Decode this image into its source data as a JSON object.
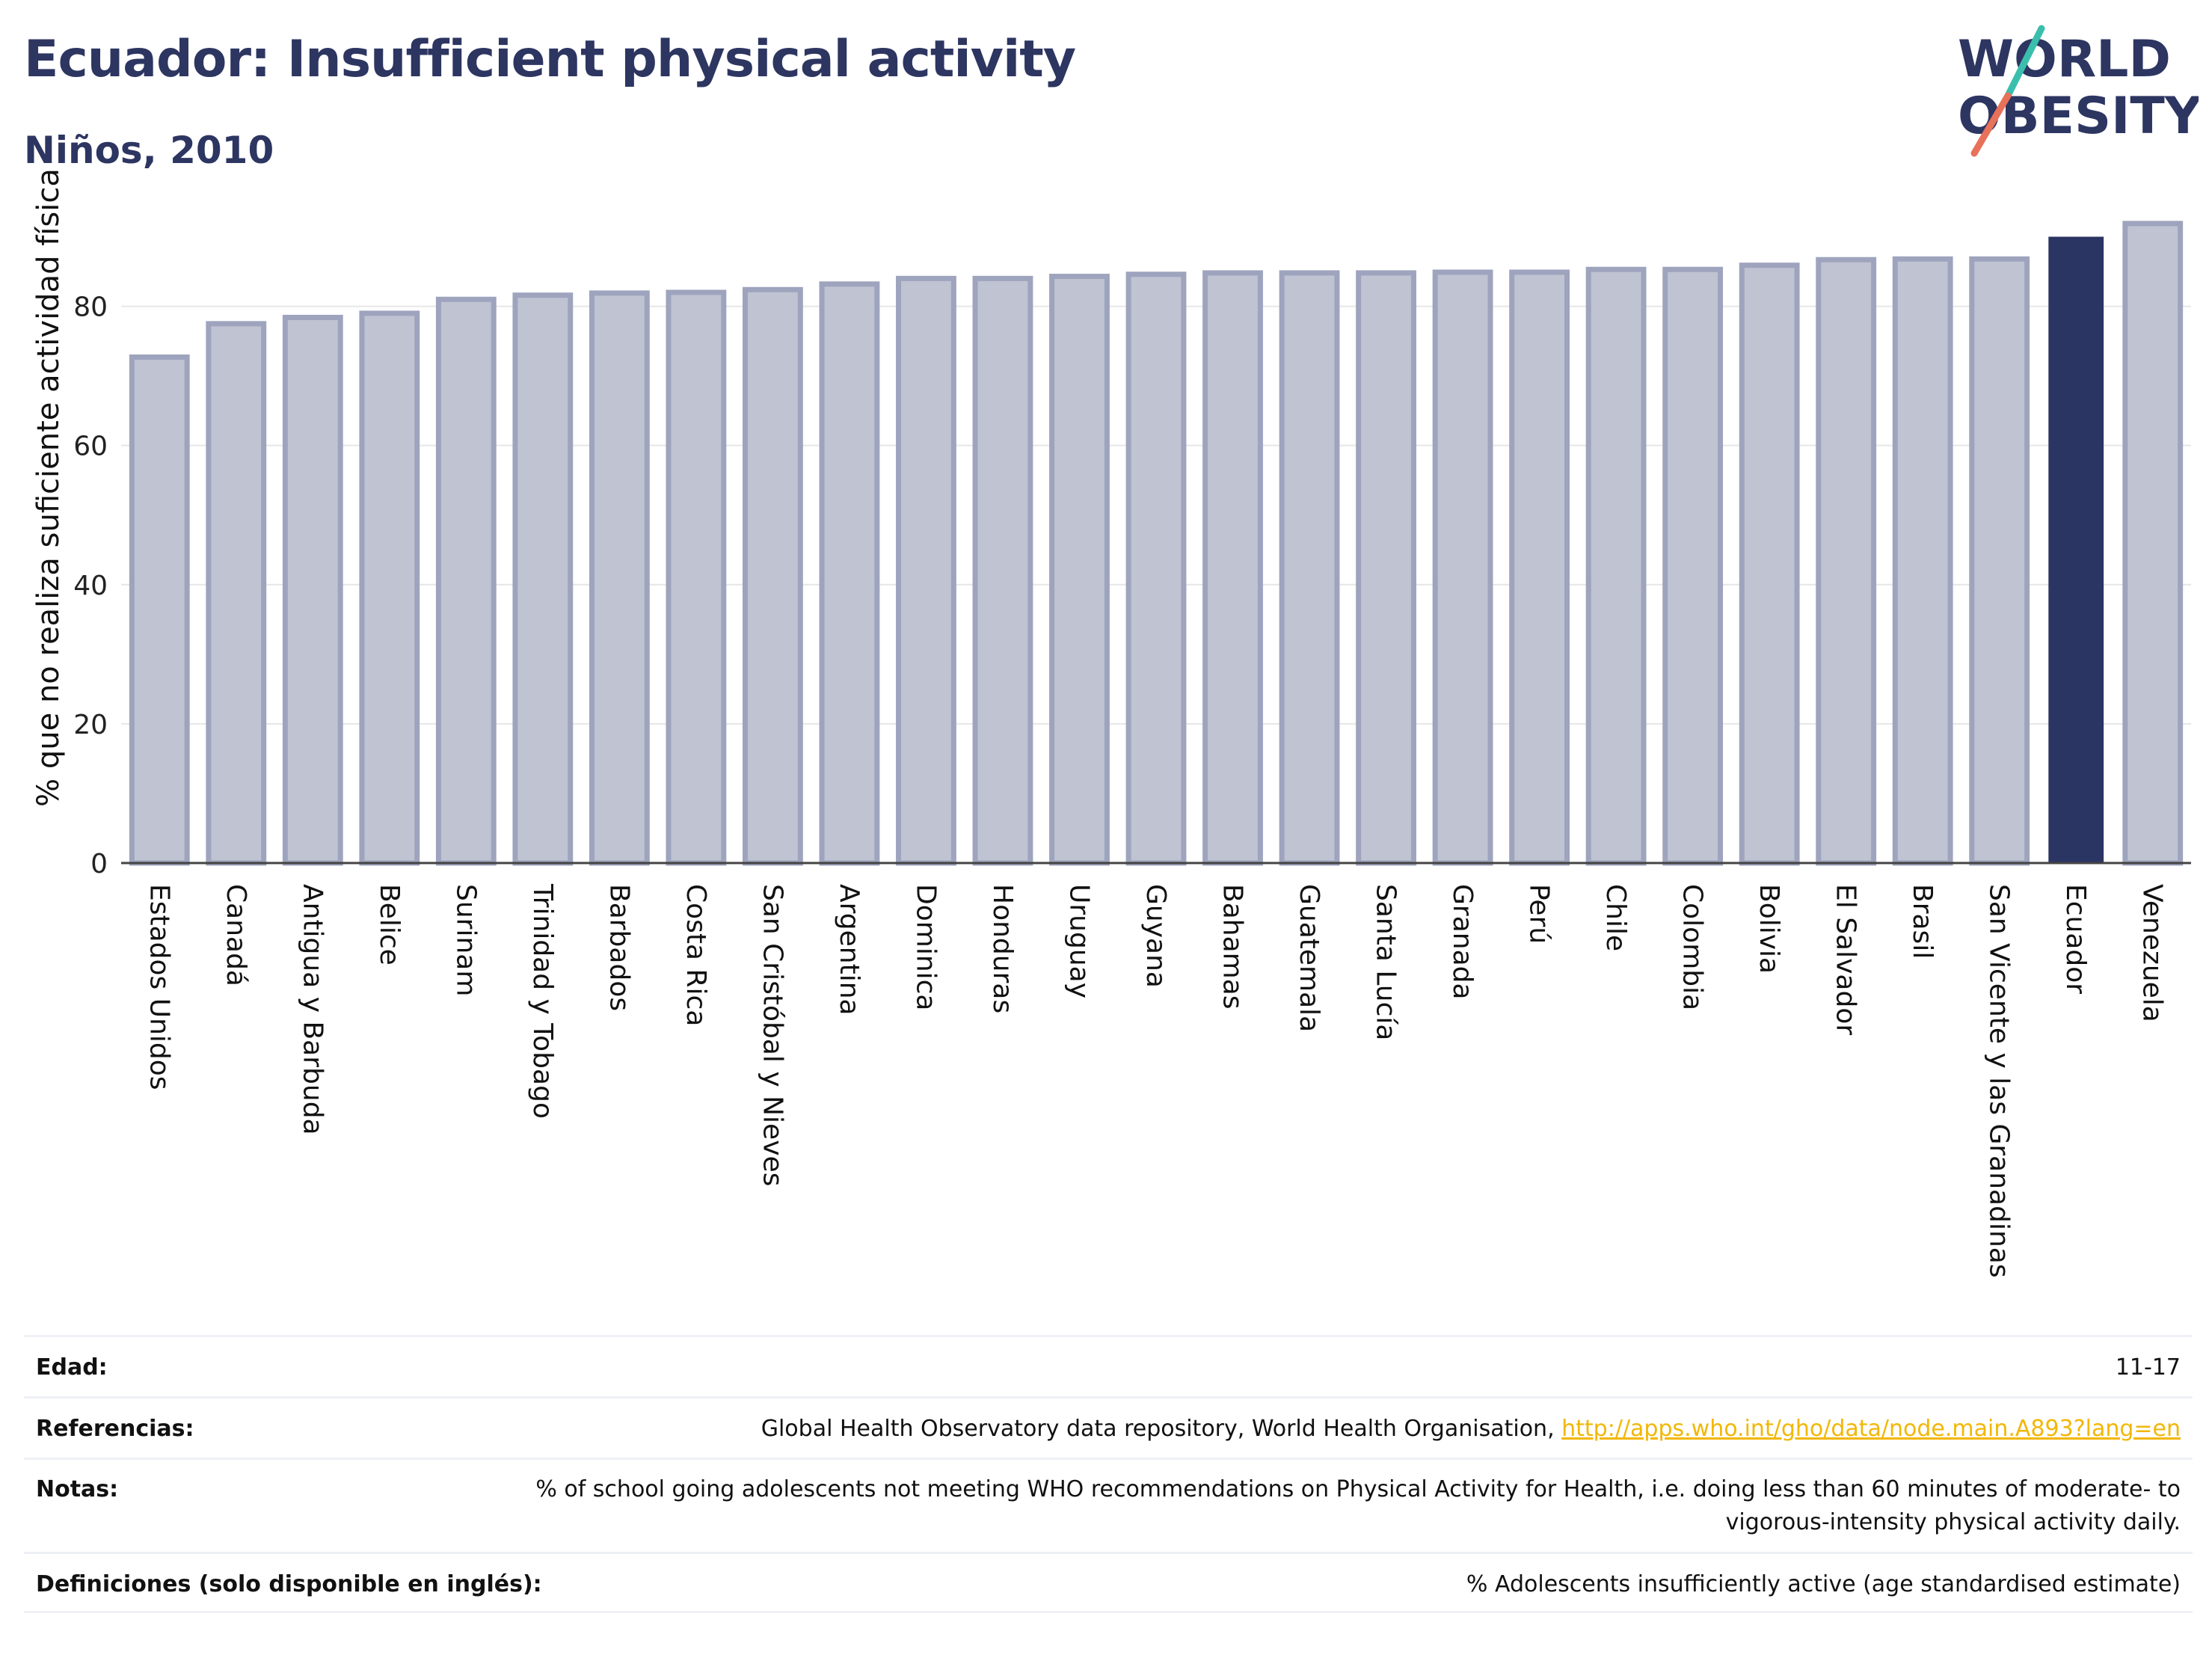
{
  "header": {
    "title": "Ecuador: Insufficient physical activity",
    "subtitle": "Niños, 2010"
  },
  "logo": {
    "line1": "WORLD",
    "line2": "OBESITY",
    "accent_teal": "#3bbfad",
    "accent_coral": "#e8715a"
  },
  "colors": {
    "bar_fill": "#bfc3d2",
    "bar_stroke": "#9ea4bd",
    "highlight": "#2b3563",
    "grid": "#e6e6e6",
    "link": "#f2b705"
  },
  "chart_data": {
    "type": "bar",
    "title": "Ecuador: Insufficient physical activity",
    "subtitle": "Niños, 2010",
    "ylabel": "% que no realiza suficiente actividad física",
    "xlabel": "",
    "ylim": [
      0,
      95
    ],
    "yticks": [
      0,
      20,
      40,
      60,
      80
    ],
    "grid": true,
    "highlight": "Ecuador",
    "categories": [
      "Estados Unidos",
      "Canadá",
      "Antigua y Barbuda",
      "Belice",
      "Surinam",
      "Trinidad y Tobago",
      "Barbados",
      "Costa Rica",
      "San Cristóbal y Nieves",
      "Argentina",
      "Dominica",
      "Honduras",
      "Uruguay",
      "Guyana",
      "Bahamas",
      "Guatemala",
      "Santa Lucía",
      "Granada",
      "Perú",
      "Chile",
      "Colombia",
      "Bolivia",
      "El Salvador",
      "Brasil",
      "San Vicente y las Granadinas",
      "Ecuador",
      "Venezuela"
    ],
    "values": [
      72.7,
      77.5,
      78.4,
      79.0,
      81.0,
      81.6,
      81.9,
      82.0,
      82.4,
      83.2,
      84.0,
      84.0,
      84.3,
      84.6,
      84.8,
      84.8,
      84.8,
      84.9,
      84.9,
      85.3,
      85.3,
      85.9,
      86.7,
      86.8,
      86.8,
      90.0,
      91.9
    ]
  },
  "info": {
    "rows": [
      {
        "key": "Edad:",
        "value": "11-17"
      },
      {
        "key": "Referencias:",
        "value": "Global Health Observatory data repository, World Health Organisation, ",
        "link": "http://apps.who.int/gho/data/node.main.A893?lang=en"
      },
      {
        "key": "Notas:",
        "value": "% of school going adolescents not meeting WHO recommendations on Physical Activity for Health, i.e. doing less than 60 minutes of moderate- to vigorous-intensity physical activity daily."
      },
      {
        "key": "Definiciones (solo disponible en inglés):",
        "value": "% Adolescents insufficiently active (age standardised estimate)"
      }
    ]
  }
}
